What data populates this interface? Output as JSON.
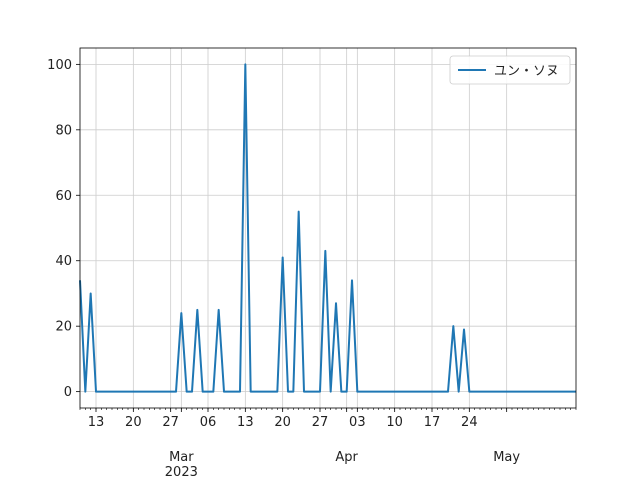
{
  "chart_data": {
    "type": "line",
    "title": "",
    "xlabel": "",
    "ylabel": "",
    "color": "#1f77b4",
    "grid": true,
    "legend_position": "top-right",
    "xlim": [
      "2023-02-10",
      "2023-05-14"
    ],
    "ylim": [
      -5,
      105
    ],
    "y_ticks": [
      0,
      20,
      40,
      60,
      80,
      100
    ],
    "x_ticks": [
      {
        "date": "2023-02-13",
        "label": "13"
      },
      {
        "date": "2023-02-20",
        "label": "20"
      },
      {
        "date": "2023-02-27",
        "label": "27"
      },
      {
        "date": "2023-03-01",
        "label": "Mar",
        "sublabel": "2023"
      },
      {
        "date": "2023-03-06",
        "label": "06"
      },
      {
        "date": "2023-03-13",
        "label": "13"
      },
      {
        "date": "2023-03-20",
        "label": "20"
      },
      {
        "date": "2023-03-27",
        "label": "27"
      },
      {
        "date": "2023-04-01",
        "label": "Apr"
      },
      {
        "date": "2023-04-03",
        "label": "03"
      },
      {
        "date": "2023-04-10",
        "label": "10"
      },
      {
        "date": "2023-04-17",
        "label": "17"
      },
      {
        "date": "2023-04-24",
        "label": "24"
      },
      {
        "date": "2023-05-01",
        "label": "May"
      }
    ],
    "series": [
      {
        "name": "ユン・ソヌ",
        "points": [
          {
            "x": "2023-02-10",
            "y": 34
          },
          {
            "x": "2023-02-11",
            "y": 0
          },
          {
            "x": "2023-02-12",
            "y": 30
          },
          {
            "x": "2023-02-13",
            "y": 0
          },
          {
            "x": "2023-02-28",
            "y": 0
          },
          {
            "x": "2023-03-01",
            "y": 24
          },
          {
            "x": "2023-03-02",
            "y": 0
          },
          {
            "x": "2023-03-03",
            "y": 0
          },
          {
            "x": "2023-03-04",
            "y": 25
          },
          {
            "x": "2023-03-05",
            "y": 0
          },
          {
            "x": "2023-03-07",
            "y": 0
          },
          {
            "x": "2023-03-08",
            "y": 25
          },
          {
            "x": "2023-03-09",
            "y": 0
          },
          {
            "x": "2023-03-12",
            "y": 0
          },
          {
            "x": "2023-03-13",
            "y": 100
          },
          {
            "x": "2023-03-14",
            "y": 0
          },
          {
            "x": "2023-03-19",
            "y": 0
          },
          {
            "x": "2023-03-20",
            "y": 41
          },
          {
            "x": "2023-03-21",
            "y": 0
          },
          {
            "x": "2023-03-22",
            "y": 0
          },
          {
            "x": "2023-03-23",
            "y": 55
          },
          {
            "x": "2023-03-24",
            "y": 0
          },
          {
            "x": "2023-03-27",
            "y": 0
          },
          {
            "x": "2023-03-28",
            "y": 43
          },
          {
            "x": "2023-03-29",
            "y": 0
          },
          {
            "x": "2023-03-30",
            "y": 27
          },
          {
            "x": "2023-03-31",
            "y": 0
          },
          {
            "x": "2023-04-01",
            "y": 0
          },
          {
            "x": "2023-04-02",
            "y": 34
          },
          {
            "x": "2023-04-03",
            "y": 0
          },
          {
            "x": "2023-04-20",
            "y": 0
          },
          {
            "x": "2023-04-21",
            "y": 20
          },
          {
            "x": "2023-04-22",
            "y": 0
          },
          {
            "x": "2023-04-23",
            "y": 19
          },
          {
            "x": "2023-04-24",
            "y": 0
          },
          {
            "x": "2023-05-14",
            "y": 0
          }
        ]
      }
    ]
  }
}
